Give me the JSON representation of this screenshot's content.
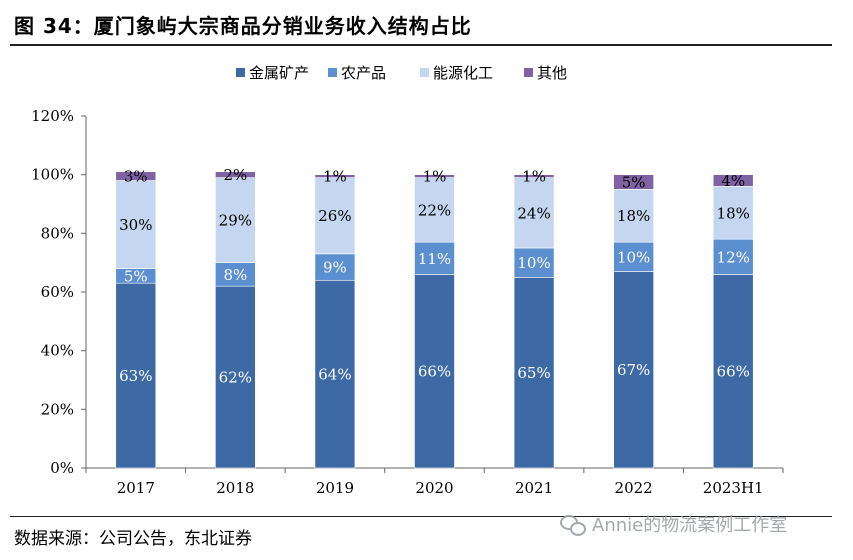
{
  "figure": {
    "title": "图 34：厦门象屿大宗商品分销业务收入结构占比",
    "source": "数据来源：公司公告，东北证券",
    "watermark": "Annie的物流案例工作室"
  },
  "colors": {
    "金属矿产": "#3d6aa5",
    "农产品": "#5b8fd0",
    "能源化工": "#c5d7f0",
    "其他": "#7f62a3"
  },
  "chart_data": {
    "type": "bar",
    "stacked": true,
    "categories": [
      "2017",
      "2018",
      "2019",
      "2020",
      "2021",
      "2022",
      "2023H1"
    ],
    "series": [
      {
        "name": "金属矿产",
        "values": [
          63,
          62,
          64,
          66,
          65,
          67,
          66
        ],
        "labels": [
          "63%",
          "62%",
          "64%",
          "66%",
          "65%",
          "67%",
          "66%"
        ]
      },
      {
        "name": "农产品",
        "values": [
          5,
          8,
          9,
          11,
          10,
          10,
          12
        ],
        "labels": [
          "5%",
          "8%",
          "9%",
          "11%",
          "10%",
          "10%",
          "12%"
        ]
      },
      {
        "name": "能源化工",
        "values": [
          30,
          29,
          26,
          22,
          24,
          18,
          18
        ],
        "labels": [
          "30%",
          "29%",
          "26%",
          "22%",
          "24%",
          "18%",
          "18%"
        ]
      },
      {
        "name": "其他",
        "values": [
          3,
          2,
          1,
          1,
          1,
          5,
          4
        ],
        "labels": [
          "3%",
          "2%",
          "1%",
          "1%",
          "1%",
          "5%",
          "4%"
        ]
      }
    ],
    "yticks": [
      "0%",
      "20%",
      "40%",
      "60%",
      "80%",
      "100%",
      "120%"
    ],
    "ylim": [
      0,
      120
    ],
    "legend_position": "top-center",
    "grid": false
  }
}
